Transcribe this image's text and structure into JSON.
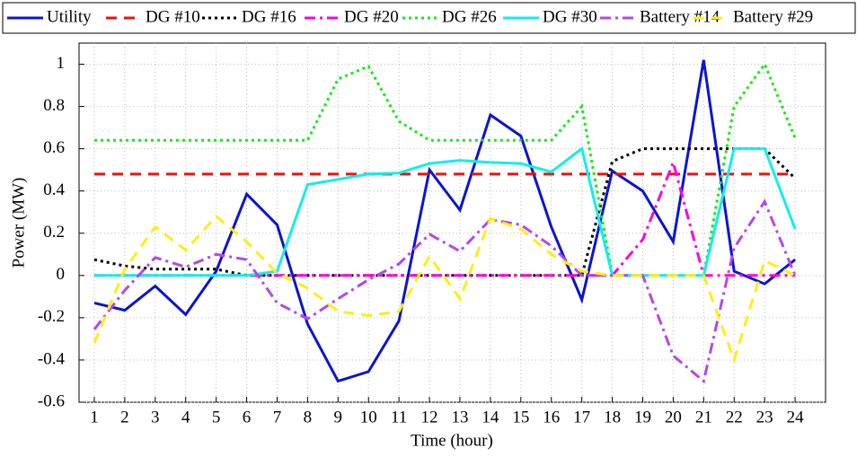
{
  "chart_data": {
    "type": "line",
    "xlabel": "Time (hour)",
    "ylabel": "Power (MW)",
    "x": [
      1,
      2,
      3,
      4,
      5,
      6,
      7,
      8,
      9,
      10,
      11,
      12,
      13,
      14,
      15,
      16,
      17,
      18,
      19,
      20,
      21,
      22,
      23,
      24
    ],
    "xlim": [
      0.5,
      25
    ],
    "xticks": [
      1,
      2,
      3,
      4,
      5,
      6,
      7,
      8,
      9,
      10,
      11,
      12,
      13,
      14,
      15,
      16,
      17,
      18,
      19,
      20,
      21,
      22,
      23,
      24
    ],
    "ylim": [
      -0.6,
      1.1
    ],
    "yticks": [
      -0.6,
      -0.4,
      -0.2,
      0,
      0.2,
      0.4,
      0.6,
      0.8,
      1
    ],
    "grid": true,
    "legend": "top",
    "series": [
      {
        "name": "Utility",
        "color": "#0a14d2",
        "style": "solid",
        "values": [
          -0.13,
          -0.165,
          -0.05,
          -0.185,
          0.02,
          0.385,
          0.24,
          -0.23,
          -0.5,
          -0.455,
          -0.215,
          0.5,
          0.31,
          0.76,
          0.66,
          0.23,
          -0.115,
          0.495,
          0.4,
          0.16,
          1.02,
          0.02,
          -0.04,
          0.075
        ]
      },
      {
        "name": "DG #10",
        "color": "#ee1111",
        "style": "dashed",
        "values": [
          0.48,
          0.48,
          0.48,
          0.48,
          0.48,
          0.48,
          0.48,
          0.48,
          0.48,
          0.48,
          0.48,
          0.48,
          0.48,
          0.48,
          0.48,
          0.48,
          0.48,
          0.48,
          0.48,
          0.48,
          0.48,
          0.48,
          0.48,
          0.48
        ]
      },
      {
        "name": "DG #16",
        "color": "#000000",
        "style": "dotted",
        "values": [
          0.075,
          0.045,
          0.03,
          0.03,
          0.03,
          0,
          0,
          0,
          0,
          0,
          0,
          0,
          0,
          0,
          0,
          0,
          0,
          0.54,
          0.6,
          0.6,
          0.6,
          0.6,
          0.6,
          0.46
        ]
      },
      {
        "name": "DG #20",
        "color": "#ff00dd",
        "style": "dashdot",
        "values": [
          0,
          0,
          0,
          0,
          0,
          0,
          0,
          0,
          0,
          0,
          0,
          0,
          0,
          0,
          0,
          0,
          0,
          0,
          0.17,
          0.535,
          0,
          0,
          0,
          0
        ]
      },
      {
        "name": "DG #26",
        "color": "#11ee11",
        "style": "dotted",
        "values": [
          0.64,
          0.64,
          0.64,
          0.64,
          0.64,
          0.64,
          0.64,
          0.64,
          0.93,
          0.99,
          0.73,
          0.64,
          0.64,
          0.64,
          0.64,
          0.64,
          0.8,
          0,
          0,
          0,
          0,
          0.8,
          1.0,
          0.65
        ]
      },
      {
        "name": "DG #30",
        "color": "#11eeee",
        "style": "solid",
        "values": [
          0,
          0,
          0,
          0,
          0,
          0,
          0.02,
          0.43,
          0.455,
          0.48,
          0.485,
          0.53,
          0.545,
          0.535,
          0.53,
          0.49,
          0.6,
          0,
          0,
          0,
          0,
          0.6,
          0.6,
          0.22
        ]
      },
      {
        "name": "Battery #14",
        "color": "#b446ee",
        "style": "dashdot",
        "values": [
          -0.255,
          -0.07,
          0.085,
          0.04,
          0.1,
          0.075,
          -0.13,
          -0.205,
          -0.11,
          -0.02,
          0.055,
          0.195,
          0.115,
          0.265,
          0.24,
          0.14,
          0,
          0,
          0,
          -0.38,
          -0.5,
          0.13,
          0.35,
          0
        ]
      },
      {
        "name": "Battery #29",
        "color": "#ffee11",
        "style": "dashed",
        "values": [
          -0.32,
          0.03,
          0.23,
          0.12,
          0.28,
          0.16,
          0.01,
          -0.06,
          -0.17,
          -0.19,
          -0.17,
          0.09,
          -0.11,
          0.27,
          0.22,
          0.1,
          0.02,
          0,
          0,
          0,
          0,
          -0.4,
          0.07,
          0
        ]
      }
    ]
  }
}
